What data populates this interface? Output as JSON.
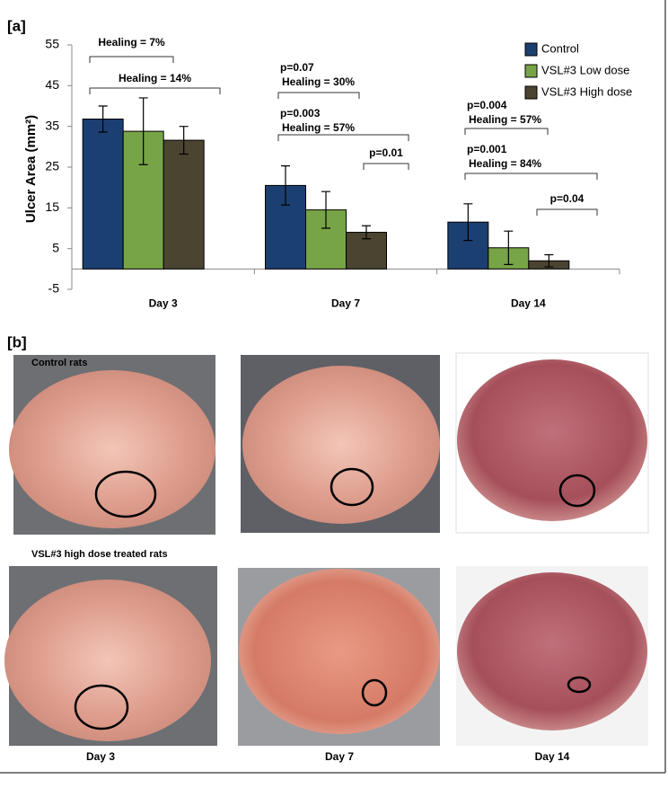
{
  "chart_data": {
    "type": "bar",
    "panel_label": "[a]",
    "y_label": "Ulcer Area (mm²)",
    "categories": [
      "Day 3",
      "Day 7",
      "Day 14"
    ],
    "series": [
      {
        "name": "Control",
        "color": "#1c3f72",
        "values": [
          36.8,
          20.5,
          11.5
        ],
        "errors": [
          3.2,
          4.8,
          4.5
        ]
      },
      {
        "name": "VSL#3 Low dose",
        "color": "#77a446",
        "values": [
          33.8,
          14.5,
          5.2
        ],
        "errors": [
          8.2,
          4.5,
          4.1
        ]
      },
      {
        "name": "VSL#3 High dose",
        "color": "#4b4431",
        "values": [
          31.6,
          9.0,
          2.0
        ],
        "errors": [
          3.4,
          1.6,
          1.5
        ]
      }
    ],
    "ylim": [
      -5,
      55
    ],
    "yticks": [
      -5,
      5,
      15,
      25,
      35,
      45,
      55
    ],
    "legend": "top-right",
    "annotations": [
      {
        "lines": [
          "Healing = 7%"
        ]
      },
      {
        "lines": [
          "Healing = 14%"
        ]
      },
      {
        "lines": [
          "p=0.07",
          "Healing = 30%"
        ]
      },
      {
        "lines": [
          "p=0.003",
          "Healing = 57%"
        ]
      },
      {
        "lines": [
          "p=0.01"
        ]
      },
      {
        "lines": [
          "p=0.004",
          "Healing = 57%"
        ]
      },
      {
        "lines": [
          "p=0.001",
          "Healing = 84%"
        ]
      },
      {
        "lines": [
          "p=0.04"
        ]
      }
    ]
  },
  "photos": {
    "panel_label": "[b]",
    "row_labels": [
      "Control rats",
      "VSL#3 high dose treated rats"
    ],
    "column_labels": [
      "Day 3",
      "Day 7",
      "Day 14"
    ]
  }
}
